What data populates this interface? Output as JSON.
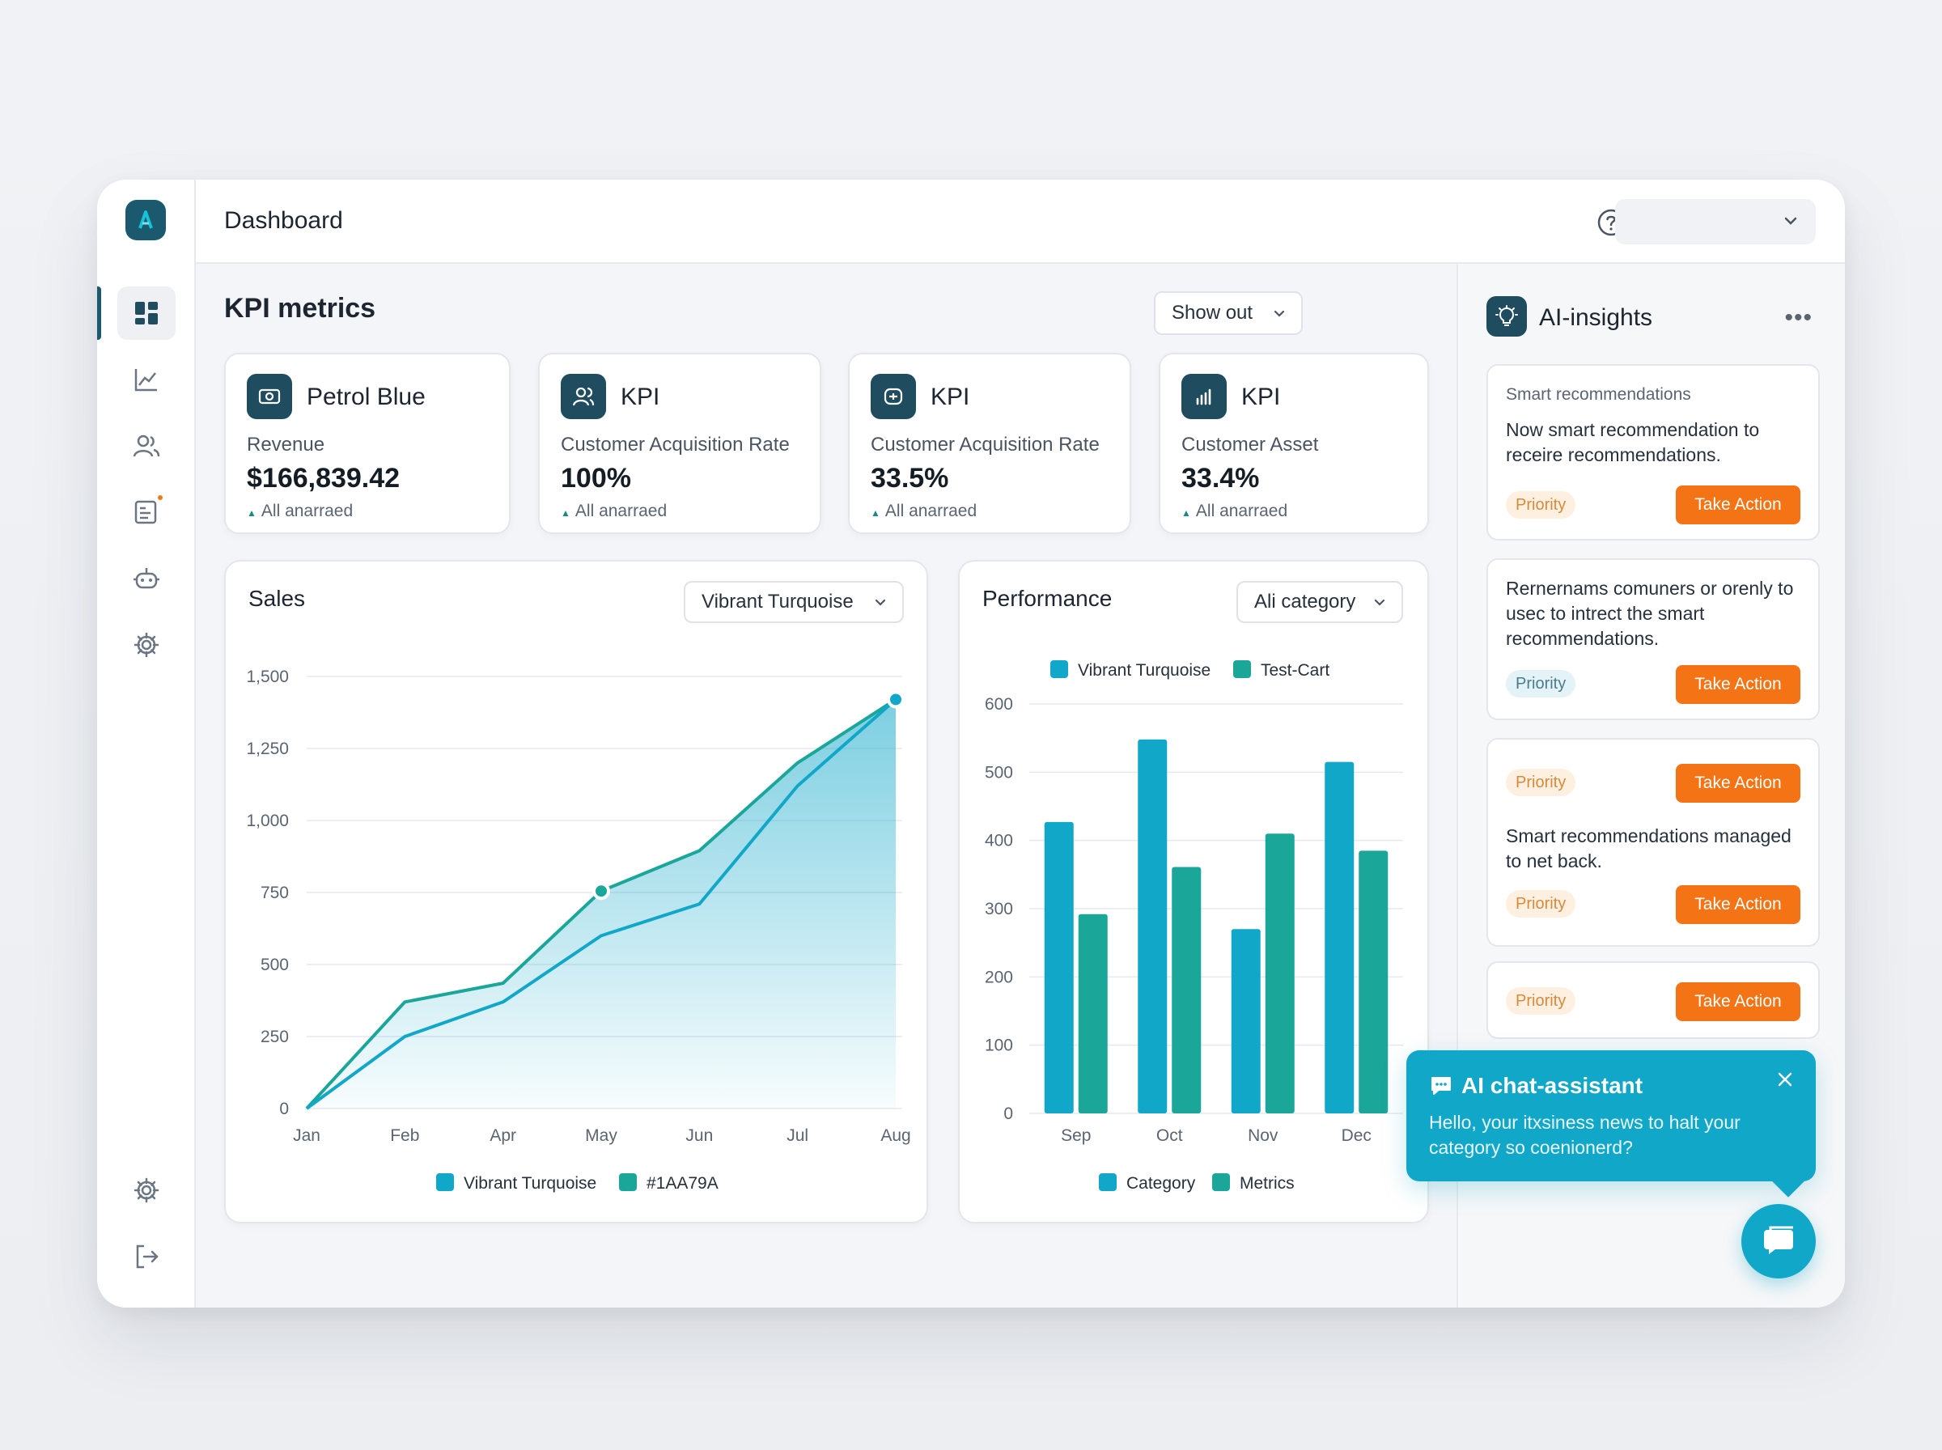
{
  "app": {
    "title": "Dashboard",
    "user_select_value": ""
  },
  "colors": {
    "turquoise": "#11a7c9",
    "teal": "#1aa79a",
    "petrol": "#1f4c5e",
    "orange": "#f47415"
  },
  "sidebar": {
    "items": [
      {
        "name": "dashboard",
        "icon": "grid-icon",
        "active": true
      },
      {
        "name": "analytics",
        "icon": "line-chart-icon"
      },
      {
        "name": "users",
        "icon": "users-icon"
      },
      {
        "name": "reports",
        "icon": "report-icon",
        "badge": true
      },
      {
        "name": "bot",
        "icon": "robot-icon"
      },
      {
        "name": "settings",
        "icon": "gear-icon"
      }
    ],
    "bottom": [
      {
        "name": "settings",
        "icon": "gear-icon"
      },
      {
        "name": "logout",
        "icon": "logout-icon"
      }
    ]
  },
  "kpi": {
    "title": "KPI metrics",
    "filter_label": "Show out",
    "cards": [
      {
        "name": "Petrol Blue",
        "label": "Revenue",
        "value": "$166,839.42",
        "trend": "All anarraed",
        "icon": "wallet-icon"
      },
      {
        "name": "KPI",
        "label": "Customer Acquisition Rate",
        "value": "100%",
        "trend": "All anarraed",
        "icon": "users-icon"
      },
      {
        "name": "KPI",
        "label": "Customer Acquisition Rate",
        "value": "33.5%",
        "trend": "All anarraed",
        "icon": "coin-icon"
      },
      {
        "name": "KPI",
        "label": "Customer Asset",
        "value": "33.4%",
        "trend": "All anarraed",
        "icon": "bars-icon"
      }
    ]
  },
  "sales": {
    "title": "Sales",
    "select_value": "Vibrant Turquoise"
  },
  "performance": {
    "title": "Performance",
    "select_value": "Ali category"
  },
  "chart_data": [
    {
      "type": "area",
      "title": "Sales",
      "categories": [
        "Jan",
        "Feb",
        "Apr",
        "May",
        "Jun",
        "Jul",
        "Aug"
      ],
      "ylim": [
        0,
        1500
      ],
      "yticks": [
        "1,500",
        "1,250",
        "1,000",
        "750",
        "500",
        "250",
        "0"
      ],
      "grid": true,
      "legend_position": "bottom",
      "series": [
        {
          "name": "Vibrant Turquoise",
          "color": "#11a7c9",
          "values": [
            0,
            250,
            370,
            600,
            710,
            1120,
            1420
          ]
        },
        {
          "name": "#1AA79A",
          "color": "#1aa79a",
          "values": [
            0,
            370,
            435,
            755,
            895,
            1200,
            1420
          ]
        }
      ],
      "legend": [
        "Vibrant Turquoise",
        "#1AA79A"
      ]
    },
    {
      "type": "bar",
      "title": "Performance",
      "categories": [
        "Sep",
        "Oct",
        "Nov",
        "Dec"
      ],
      "ylim": [
        0,
        600
      ],
      "yticks": [
        "600",
        "500",
        "400",
        "300",
        "200",
        "100",
        "0"
      ],
      "grid": true,
      "top_legend": [
        "Vibrant Turquoise",
        "Test-Cart"
      ],
      "legend": [
        "Category",
        "Metrics"
      ],
      "legend_position": "bottom",
      "series": [
        {
          "name": "Vibrant Turquoise",
          "color": "#11a7c9",
          "values": [
            427,
            548,
            270,
            515
          ]
        },
        {
          "name": "Test-Cart",
          "color": "#1aa79a",
          "values": [
            292,
            361,
            410,
            385
          ]
        }
      ]
    }
  ],
  "ai_insights": {
    "title": "AI-insights",
    "more_label": "•••",
    "cards": [
      {
        "subtitle": "Smart recommendations",
        "text": "Now smart recommendation to receire recommendations.",
        "priority": "Priority",
        "action": "Take Action"
      },
      {
        "text": "Rernernams comuners or orenly to usec to intrect the smart recommendations.",
        "priority": "Priority",
        "action": "Take Action"
      },
      {
        "priority_top": "Priority",
        "action_top": "Take Action",
        "text": "Smart recommendations managed to net back.",
        "priority": "Priority",
        "action": "Take Action"
      },
      {
        "priority": "Priority",
        "action": "Take Action"
      }
    ]
  },
  "chat": {
    "title": "AI chat-assistant",
    "message": "Hello, your itxsiness news to halt your category so coenionerd?"
  }
}
